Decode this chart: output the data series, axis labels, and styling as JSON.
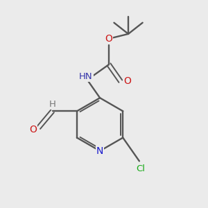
{
  "background_color": "#ebebeb",
  "bond_color": "#555555",
  "atom_colors": {
    "N_ring": "#1818cc",
    "N_amine": "#3535aa",
    "O": "#cc1818",
    "Cl": "#18aa18",
    "C": "#555555",
    "H": "#777777"
  },
  "figsize": [
    3.0,
    3.0
  ],
  "dpi": 100
}
